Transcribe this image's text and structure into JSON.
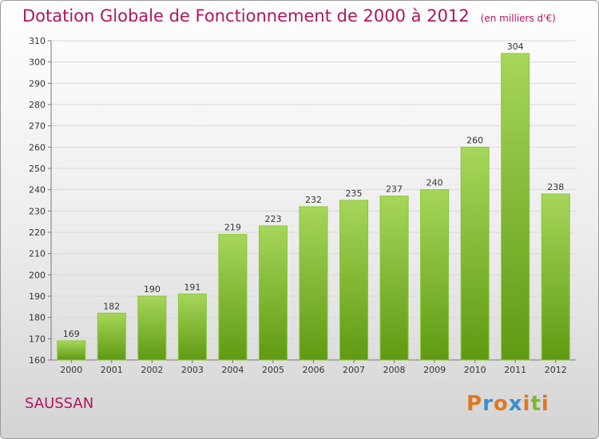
{
  "title": "Dotation Globale de Fonctionnement de 2000 à 2012",
  "unit": "(en milliers d'€)",
  "commune": "SAUSSAN",
  "logo": {
    "letters": [
      "P",
      "r",
      "o",
      "x",
      "i",
      "t",
      "i"
    ],
    "colors": [
      "#e07820",
      "#3a8fd0",
      "#e07820",
      "#3a8fd0",
      "#e07820",
      "#7cb82f",
      "#e07820"
    ]
  },
  "colors": {
    "title": "#b0155d",
    "bar_light": "#a6d65a",
    "bar_dark": "#5f9a12",
    "grid": "#d8d8d8"
  },
  "chart_data": {
    "type": "bar",
    "categories": [
      "2000",
      "2001",
      "2002",
      "2003",
      "2004",
      "2005",
      "2006",
      "2007",
      "2008",
      "2009",
      "2010",
      "2011",
      "2012"
    ],
    "values": [
      169,
      182,
      190,
      191,
      219,
      223,
      232,
      235,
      237,
      240,
      260,
      304,
      238
    ],
    "ylim": [
      160,
      310
    ],
    "yticks": [
      160,
      170,
      180,
      190,
      200,
      210,
      220,
      230,
      240,
      250,
      260,
      270,
      280,
      290,
      300,
      310
    ],
    "grid": true
  }
}
